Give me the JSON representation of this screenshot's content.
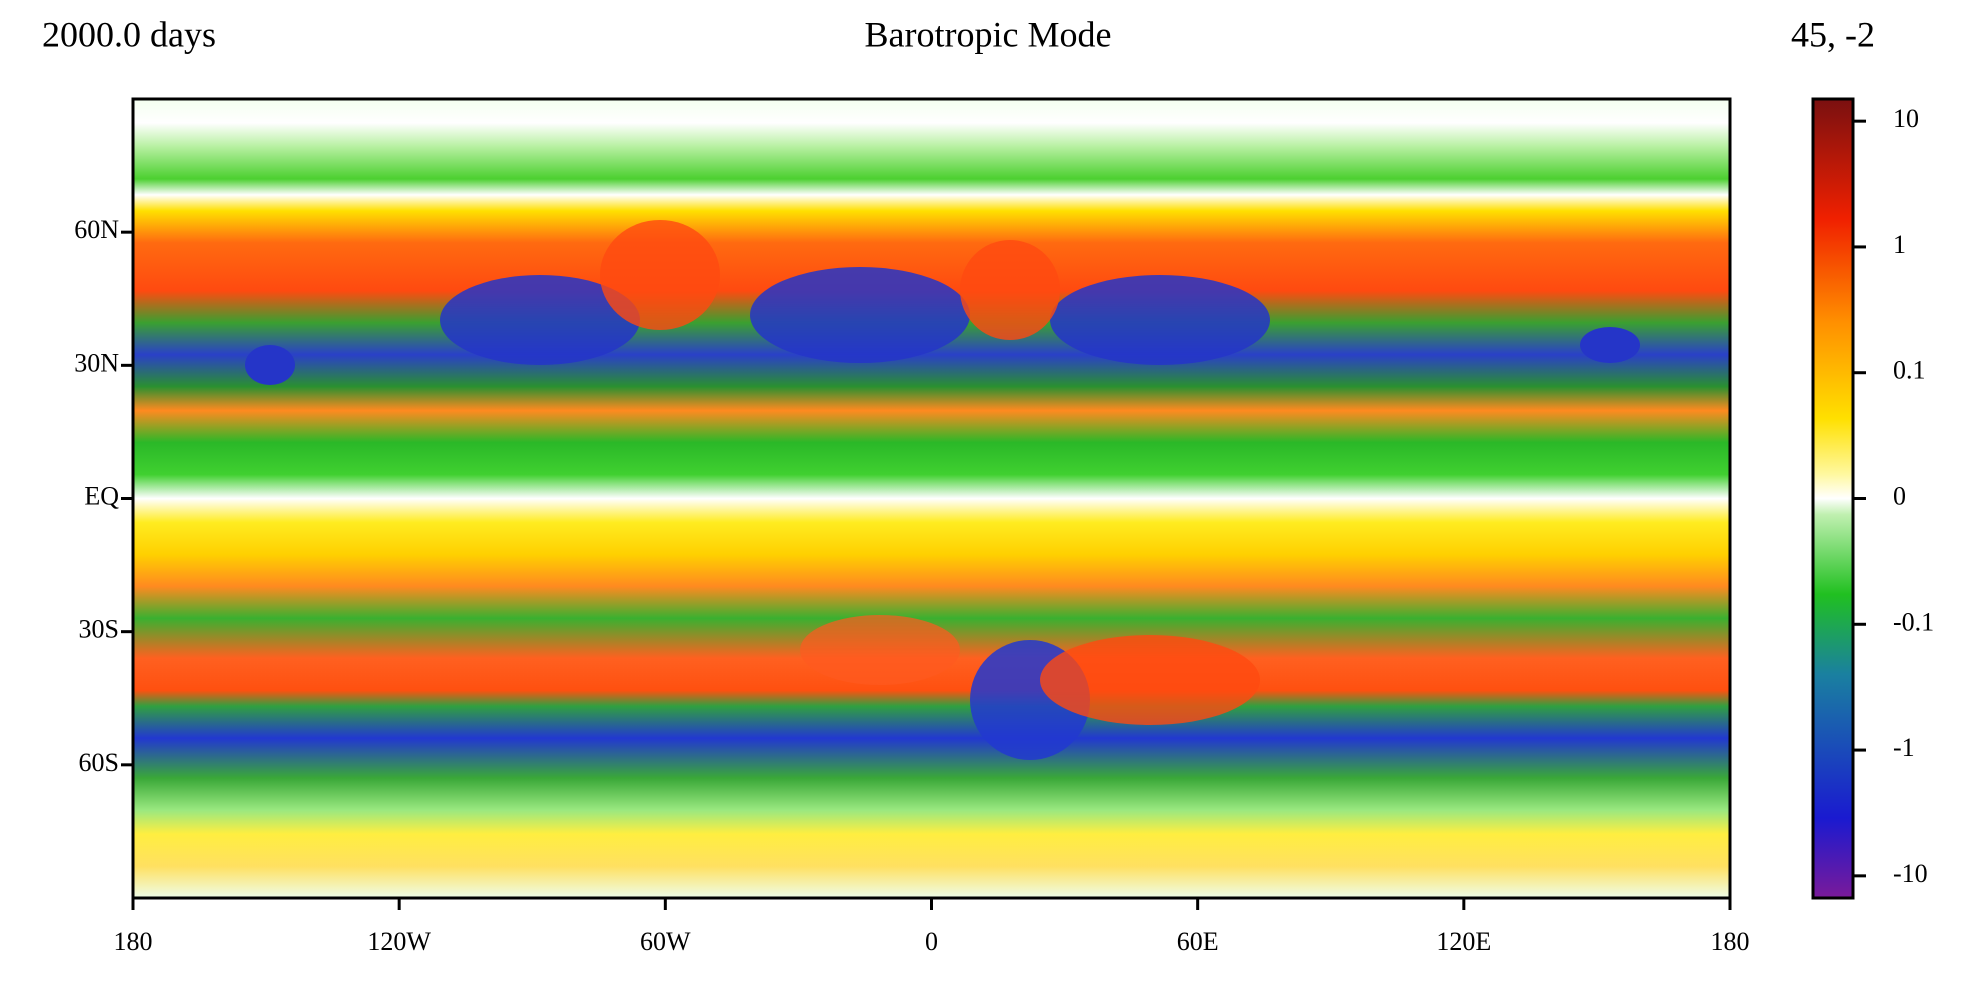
{
  "chart_data": {
    "type": "heatmap",
    "title": "Barotropic Mode",
    "annotations": [
      "2000.0 days",
      "45, -2"
    ],
    "xlim": [
      -180,
      180
    ],
    "xticks": [
      {
        "value": -180,
        "label": "180"
      },
      {
        "value": -120,
        "label": "120W"
      },
      {
        "value": -60,
        "label": "60W"
      },
      0,
      {
        "value": 60,
        "label": "60E"
      },
      {
        "value": 120,
        "label": "120E"
      },
      180
    ],
    "ylim": [
      -90,
      90
    ],
    "yticks": [
      {
        "value": 60,
        "label": "60N"
      },
      {
        "value": 30,
        "label": "30N"
      },
      {
        "value": 0,
        "label": "EQ"
      },
      {
        "value": -30,
        "label": "30S"
      },
      {
        "value": -60,
        "label": "60S"
      }
    ],
    "colorbar": {
      "scale": "symlog",
      "linthresh": 0.1,
      "clim": [
        -15,
        15
      ],
      "ticks": [
        10,
        1,
        0.1,
        0,
        -0.1,
        -1,
        -10
      ]
    }
  }
}
